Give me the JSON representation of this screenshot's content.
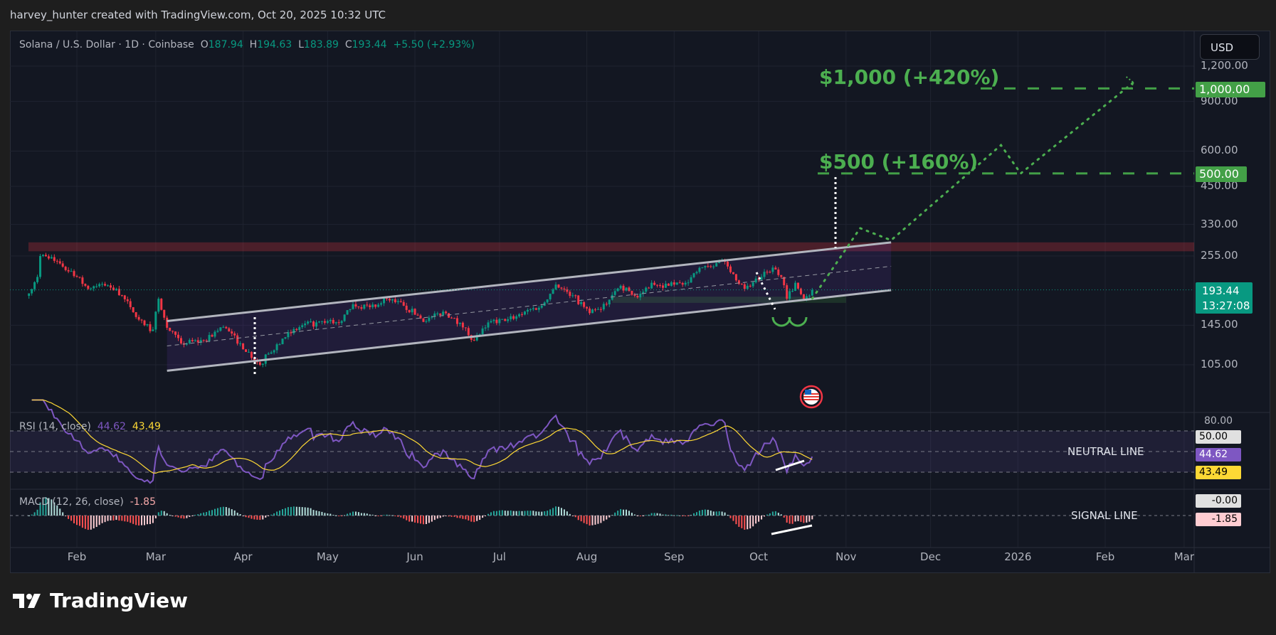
{
  "header": {
    "attribution": "harvey_hunter created with TradingView.com, Oct 20, 2025 10:32 UTC"
  },
  "legend": {
    "symbol": "Solana / U.S. Dollar · 1D · Coinbase",
    "o_label": "O",
    "open": "187.94",
    "h_label": "H",
    "high": "194.63",
    "l_label": "L",
    "low": "183.89",
    "c_label": "C",
    "close": "193.44",
    "change": "+5.50 (+2.93%)"
  },
  "currency_button": "USD",
  "price_axis": {
    "ticks": [
      "1,200.00",
      "900.00",
      "600.00",
      "450.00",
      "330.00",
      "255.00",
      "145.00",
      "105.00"
    ],
    "tick_values": [
      1200,
      900,
      600,
      450,
      330,
      255,
      145,
      105
    ],
    "scale": "log"
  },
  "last_price": {
    "value": "193.44",
    "countdown": "13:27:08",
    "color": "#089981"
  },
  "targets": [
    {
      "text": "$1,000 (+420%)",
      "axis_label": "1,000.00",
      "level": 1000
    },
    {
      "text": "$500 (+160%)",
      "axis_label": "500.00",
      "level": 500
    }
  ],
  "rsi": {
    "title": "RSI (14, close)",
    "value": "44.62",
    "ma_value": "43.49",
    "axis_top": "80.00",
    "mid_label": "50.00",
    "neutral_text": "NEUTRAL LINE",
    "colors": {
      "rsi": "#7e57c2",
      "ma": "#fdd835"
    }
  },
  "macd": {
    "title": "MACD (12, 26, close)",
    "value": "-1.85",
    "zero_label": "-0.00",
    "signal_text": "SIGNAL LINE"
  },
  "time_axis": {
    "labels": [
      {
        "text": "Feb",
        "date": "2025-02-01"
      },
      {
        "text": "Mar",
        "date": "2025-03-01"
      },
      {
        "text": "Apr",
        "date": "2025-04-01"
      },
      {
        "text": "May",
        "date": "2025-05-01"
      },
      {
        "text": "Jun",
        "date": "2025-06-01"
      },
      {
        "text": "Jul",
        "date": "2025-07-01"
      },
      {
        "text": "Aug",
        "date": "2025-08-01"
      },
      {
        "text": "Sep",
        "date": "2025-09-01"
      },
      {
        "text": "Oct",
        "date": "2025-10-01"
      },
      {
        "text": "Nov",
        "date": "2025-11-01"
      },
      {
        "text": "Dec",
        "date": "2025-12-01"
      },
      {
        "text": "2026",
        "date": "2026-01-01"
      },
      {
        "text": "Feb",
        "date": "2026-02-01"
      },
      {
        "text": "Mar",
        "date": "2026-03-01"
      }
    ]
  },
  "branding": "TradingView",
  "chart_data": {
    "type": "candlestick",
    "title": "Solana / U.S. Dollar · 1D · Coinbase",
    "y_scale": "log",
    "ylim": [
      90,
      1300
    ],
    "xlim": [
      "2025-01-12",
      "2026-03-20"
    ],
    "colors": {
      "up": "#089981",
      "down": "#f23645",
      "target": "#4caf50",
      "resistance": "#f23645"
    },
    "approx_closes": [
      [
        "2025-01-15",
        188
      ],
      [
        "2025-01-18",
        215
      ],
      [
        "2025-01-19",
        255
      ],
      [
        "2025-01-22",
        250
      ],
      [
        "2025-01-26",
        240
      ],
      [
        "2025-02-01",
        215
      ],
      [
        "2025-02-05",
        195
      ],
      [
        "2025-02-10",
        203
      ],
      [
        "2025-02-15",
        195
      ],
      [
        "2025-02-20",
        168
      ],
      [
        "2025-02-25",
        145
      ],
      [
        "2025-02-28",
        140
      ],
      [
        "2025-03-02",
        180
      ],
      [
        "2025-03-05",
        142
      ],
      [
        "2025-03-10",
        125
      ],
      [
        "2025-03-18",
        128
      ],
      [
        "2025-03-25",
        143
      ],
      [
        "2025-03-31",
        125
      ],
      [
        "2025-04-07",
        105
      ],
      [
        "2025-04-10",
        115
      ],
      [
        "2025-04-15",
        130
      ],
      [
        "2025-04-22",
        145
      ],
      [
        "2025-04-30",
        148
      ],
      [
        "2025-05-06",
        150
      ],
      [
        "2025-05-10",
        172
      ],
      [
        "2025-05-16",
        168
      ],
      [
        "2025-05-22",
        180
      ],
      [
        "2025-05-28",
        170
      ],
      [
        "2025-06-05",
        150
      ],
      [
        "2025-06-11",
        162
      ],
      [
        "2025-06-17",
        148
      ],
      [
        "2025-06-22",
        128
      ],
      [
        "2025-06-28",
        150
      ],
      [
        "2025-07-03",
        150
      ],
      [
        "2025-07-10",
        162
      ],
      [
        "2025-07-16",
        170
      ],
      [
        "2025-07-21",
        202
      ],
      [
        "2025-07-27",
        185
      ],
      [
        "2025-08-02",
        160
      ],
      [
        "2025-08-06",
        165
      ],
      [
        "2025-08-13",
        200
      ],
      [
        "2025-08-19",
        182
      ],
      [
        "2025-08-24",
        205
      ],
      [
        "2025-08-30",
        200
      ],
      [
        "2025-09-05",
        205
      ],
      [
        "2025-09-12",
        235
      ],
      [
        "2025-09-18",
        245
      ],
      [
        "2025-09-22",
        220
      ],
      [
        "2025-09-26",
        195
      ],
      [
        "2025-10-02",
        215
      ],
      [
        "2025-10-06",
        232
      ],
      [
        "2025-10-09",
        215
      ],
      [
        "2025-10-11",
        180
      ],
      [
        "2025-10-14",
        205
      ],
      [
        "2025-10-17",
        180
      ],
      [
        "2025-10-20",
        193.44
      ]
    ],
    "resistance_zone": [
      265,
      285
    ],
    "support_zone": [
      174,
      183
    ],
    "channel": {
      "lower": [
        [
          "2025-03-05",
          100
        ],
        [
          "2025-11-17",
          193
        ]
      ],
      "upper": [
        [
          "2025-03-05",
          150
        ],
        [
          "2025-11-17",
          285
        ]
      ]
    },
    "projection": [
      [
        "2025-10-20",
        180
      ],
      [
        "2025-11-06",
        320
      ],
      [
        "2025-11-17",
        290
      ],
      [
        "2025-12-26",
        630
      ],
      [
        "2026-01-02",
        500
      ],
      [
        "2026-02-11",
        1050
      ]
    ],
    "target_levels": [
      500,
      1000
    ]
  }
}
